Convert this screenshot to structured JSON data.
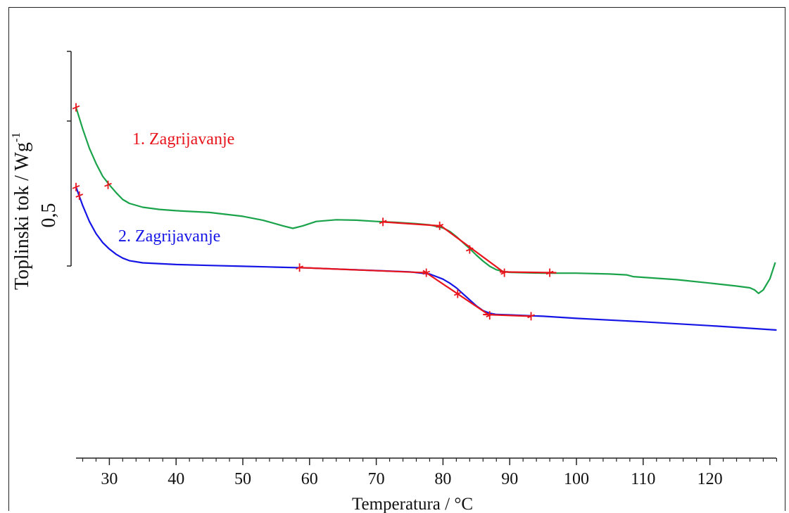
{
  "chart_data": {
    "type": "line",
    "xlabel": "Temperatura / °C",
    "ylabel": "Toplinski tok / Wg",
    "ylabel_superscript": "-1",
    "scale_bar_label": "0,5",
    "xlim": [
      25,
      130
    ],
    "xticks": [
      30,
      40,
      50,
      60,
      70,
      80,
      90,
      100,
      110,
      120
    ],
    "grid": false,
    "series": [
      {
        "name": "1. Zagrijavanje",
        "color": "#1aa34a",
        "label_color": "#e8141c",
        "points": [
          [
            25.0,
            0.87
          ],
          [
            26.0,
            0.82
          ],
          [
            27.0,
            0.775
          ],
          [
            28.0,
            0.74
          ],
          [
            29.0,
            0.71
          ],
          [
            30.0,
            0.69
          ],
          [
            31.0,
            0.672
          ],
          [
            32.0,
            0.656
          ],
          [
            33.0,
            0.647
          ],
          [
            35.0,
            0.638
          ],
          [
            37.5,
            0.633
          ],
          [
            40,
            0.63
          ],
          [
            45,
            0.626
          ],
          [
            50,
            0.617
          ],
          [
            53,
            0.608
          ],
          [
            56,
            0.595
          ],
          [
            57.5,
            0.589
          ],
          [
            59,
            0.595
          ],
          [
            61,
            0.605
          ],
          [
            64,
            0.609
          ],
          [
            67,
            0.608
          ],
          [
            70,
            0.605
          ],
          [
            73,
            0.603
          ],
          [
            76,
            0.6
          ],
          [
            78,
            0.597
          ],
          [
            80,
            0.59
          ],
          [
            81,
            0.582
          ],
          [
            82,
            0.57
          ],
          [
            83,
            0.556
          ],
          [
            84,
            0.542
          ],
          [
            85,
            0.527
          ],
          [
            86,
            0.513
          ],
          [
            87,
            0.501
          ],
          [
            88,
            0.493
          ],
          [
            89,
            0.489
          ],
          [
            90,
            0.487
          ],
          [
            95,
            0.485
          ],
          [
            100,
            0.485
          ],
          [
            105,
            0.483
          ],
          [
            107.5,
            0.481
          ],
          [
            108.5,
            0.477
          ],
          [
            115,
            0.47
          ],
          [
            120,
            0.462
          ],
          [
            124,
            0.455
          ],
          [
            126,
            0.451
          ],
          [
            126.7,
            0.446
          ],
          [
            127.3,
            0.438
          ],
          [
            128,
            0.446
          ],
          [
            129,
            0.472
          ],
          [
            129.8,
            0.51
          ]
        ]
      },
      {
        "name": "2. Zagrijavanje",
        "color": "#1515e6",
        "label_color": "#1515e6",
        "points": [
          [
            25.0,
            0.685
          ],
          [
            26.0,
            0.642
          ],
          [
            27.0,
            0.605
          ],
          [
            28.0,
            0.577
          ],
          [
            29.0,
            0.556
          ],
          [
            30.0,
            0.541
          ],
          [
            31.0,
            0.529
          ],
          [
            32.0,
            0.52
          ],
          [
            33.0,
            0.514
          ],
          [
            35.0,
            0.509
          ],
          [
            40,
            0.505
          ],
          [
            45,
            0.503
          ],
          [
            50,
            0.501
          ],
          [
            55,
            0.499
          ],
          [
            60,
            0.497
          ],
          [
            65,
            0.494
          ],
          [
            70,
            0.491
          ],
          [
            75,
            0.488
          ],
          [
            78,
            0.483
          ],
          [
            80,
            0.471
          ],
          [
            81,
            0.462
          ],
          [
            82,
            0.451
          ],
          [
            83,
            0.437
          ],
          [
            84,
            0.423
          ],
          [
            85,
            0.409
          ],
          [
            86,
            0.398
          ],
          [
            87,
            0.392
          ],
          [
            88,
            0.389
          ],
          [
            90,
            0.388
          ],
          [
            95,
            0.385
          ],
          [
            100,
            0.38
          ],
          [
            110,
            0.372
          ],
          [
            120,
            0.363
          ],
          [
            130,
            0.353
          ]
        ]
      }
    ],
    "tangent_color": "#e8141c",
    "tangents": [
      {
        "points": [
          [
            71.0,
            0.604
          ],
          [
            79.5,
            0.595
          ]
        ]
      },
      {
        "points": [
          [
            79.5,
            0.597
          ],
          [
            89.2,
            0.486
          ]
        ]
      },
      {
        "points": [
          [
            88.5,
            0.488
          ],
          [
            97.0,
            0.486
          ]
        ]
      },
      {
        "points": [
          [
            58.5,
            0.498
          ],
          [
            77.5,
            0.486
          ]
        ]
      },
      {
        "points": [
          [
            77.0,
            0.491
          ],
          [
            87.0,
            0.387
          ]
        ]
      },
      {
        "points": [
          [
            86.0,
            0.389
          ],
          [
            93.2,
            0.385
          ]
        ]
      }
    ],
    "tangent_markers": [
      [
        71.0,
        0.604
      ],
      [
        79.5,
        0.595
      ],
      [
        84.0,
        0.54
      ],
      [
        89.2,
        0.486
      ],
      [
        96.0,
        0.486
      ],
      [
        58.5,
        0.498
      ],
      [
        77.5,
        0.486
      ],
      [
        82.2,
        0.437
      ],
      [
        87.0,
        0.387
      ],
      [
        93.2,
        0.385
      ],
      [
        25.0,
        0.87
      ],
      [
        29.8,
        0.69
      ],
      [
        25.0,
        0.685
      ],
      [
        25.5,
        0.665
      ]
    ]
  }
}
